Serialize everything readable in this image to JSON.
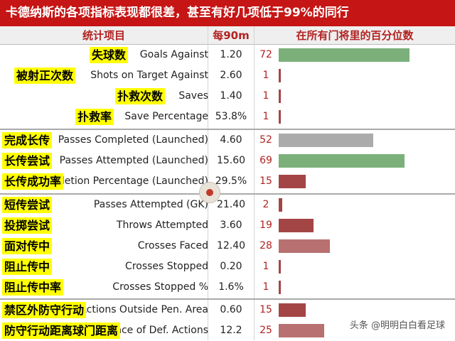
{
  "title": "卡德纳斯的各项指标表现都很差，甚至有好几项低于99%的同行",
  "headers": {
    "item": "统计项目",
    "per90": "每90m",
    "percentile": "在所有门将里的百分位数"
  },
  "watermark": "头条 @明明白白看足球",
  "chart_data": {
    "type": "bar",
    "orientation": "horizontal",
    "title": "卡德纳斯的各项指标表现都很差，甚至有好几项低于99%的同行",
    "xlim": [
      0,
      100
    ],
    "colors": {
      "high": "#7bb07b",
      "mid": "#ababab",
      "low": "#a44545"
    },
    "rows": [
      {
        "zh": "失球数",
        "en": "Goals Against",
        "value": "1.20",
        "pct": 72,
        "color": "#7bb07b"
      },
      {
        "zh": "被射正次数",
        "en": "Shots on Target Against",
        "value": "2.60",
        "pct": 1,
        "color": "#a44545"
      },
      {
        "zh": "扑救次数",
        "en": "Saves",
        "value": "1.40",
        "pct": 1,
        "color": "#a44545"
      },
      {
        "zh": "扑救率",
        "en": "Save Percentage",
        "value": "53.8%",
        "pct": 1,
        "color": "#a44545"
      },
      {
        "zh": "完成长传",
        "en": "Passes Completed (Launched)",
        "value": "4.60",
        "pct": 52,
        "color": "#ababab"
      },
      {
        "zh": "长传尝试",
        "en": "Passes Attempted (Launched)",
        "value": "15.60",
        "pct": 69,
        "color": "#7bb07b"
      },
      {
        "zh": "长传成功率",
        "en": "Pass Completion Percentage (Launched)",
        "value": "29.5%",
        "pct": 15,
        "color": "#a44545"
      },
      {
        "zh": "短传尝试",
        "en": "Passes Attempted (GK)",
        "value": "21.40",
        "pct": 2,
        "color": "#a44545"
      },
      {
        "zh": "投掷尝试",
        "en": "Throws Attempted",
        "value": "3.60",
        "pct": 19,
        "color": "#a44545"
      },
      {
        "zh": "面对传中",
        "en": "Crosses Faced",
        "value": "12.40",
        "pct": 28,
        "color": "#b87070"
      },
      {
        "zh": "阻止传中",
        "en": "Crosses Stopped",
        "value": "0.20",
        "pct": 1,
        "color": "#a44545"
      },
      {
        "zh": "阻止传中率",
        "en": "Crosses Stopped %",
        "value": "1.6%",
        "pct": 1,
        "color": "#a44545"
      },
      {
        "zh": "禁区外防守行动",
        "en": "Def. Actions Outside Pen. Area",
        "value": "0.60",
        "pct": 15,
        "color": "#a44545"
      },
      {
        "zh": "防守行动距离球门距离",
        "en": "Avg. Distance of Def. Actions",
        "value": "12.2",
        "pct": 25,
        "color": "#b87070"
      }
    ]
  }
}
